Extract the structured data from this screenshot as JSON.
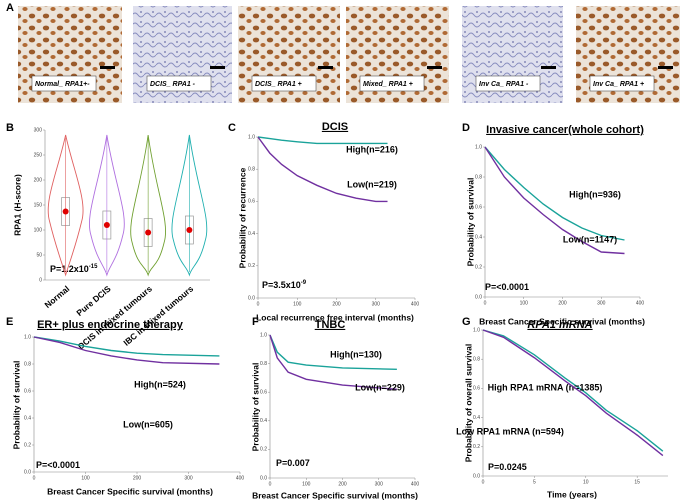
{
  "panel_a": {
    "panel": "A",
    "images": [
      {
        "caption": "Normal_ RPA1+-"
      },
      {
        "caption": "DCIS_ RPA1 -"
      },
      {
        "caption": "DCIS_ RPA1 +"
      },
      {
        "caption": "Mixed_ RPA1 +"
      },
      {
        "caption": "Inv Ca_ RPA1 -"
      },
      {
        "caption": "Inv Ca_ RPA1 +"
      }
    ]
  },
  "chart_data": [
    {
      "type": "violin",
      "panel": "B",
      "y_label": "RPA1 (H-score)",
      "p_value": "P=1.2x10",
      "p_exponent": "-15",
      "categories": [
        "Normal",
        "Pure DCIS",
        "DCIS in mixed tumours",
        "IBC in mixed tumours"
      ],
      "values": [
        137,
        110,
        95,
        100
      ],
      "colors": [
        "#e06060",
        "#b070e0",
        "#70a030",
        "#20b0b0"
      ],
      "ylim": [
        0,
        300
      ],
      "yticks": [
        0,
        50,
        100,
        150,
        200,
        250,
        300
      ]
    },
    {
      "type": "line",
      "panel": "C",
      "title": "DCIS",
      "y_label": "Probability of recurrence",
      "x_label": "Local recurrence free interval (months)",
      "p_value": "P=3.5x10",
      "p_exponent": "-9",
      "x": [
        0,
        30,
        60,
        100,
        150,
        200,
        250,
        300,
        330
      ],
      "series": [
        {
          "name": "High(n=216)",
          "color": "#1aa39a",
          "values": [
            1,
            0.99,
            0.98,
            0.97,
            0.96,
            0.96,
            0.96,
            0.96,
            0.96
          ]
        },
        {
          "name": "Low(n=219)",
          "color": "#7030a0",
          "values": [
            1,
            0.9,
            0.83,
            0.76,
            0.7,
            0.65,
            0.62,
            0.6,
            0.6
          ]
        }
      ],
      "xlim": [
        0,
        400
      ],
      "xticks": [
        0,
        100,
        200,
        300,
        400
      ],
      "ylim": [
        0,
        1
      ],
      "yticks": [
        {
          "value": 0,
          "label": "0.0"
        },
        {
          "value": 0.2,
          "label": "0.2"
        },
        {
          "value": 0.4,
          "label": "0.4"
        },
        {
          "value": 0.6,
          "label": "0.6"
        },
        {
          "value": 0.8,
          "label": "0.8"
        },
        {
          "value": 1,
          "label": "1.0"
        }
      ]
    },
    {
      "type": "line",
      "panel": "D",
      "title": "Invasive cancer(whole cohort)",
      "y_label": "Probability of survival",
      "x_label": "Breast Cancer Specific survival (months)",
      "p_value": "P=<0.0001",
      "x": [
        0,
        50,
        100,
        150,
        200,
        250,
        300,
        360
      ],
      "series": [
        {
          "name": "High(n=936)",
          "color": "#1aa39a",
          "values": [
            1,
            0.85,
            0.73,
            0.62,
            0.53,
            0.46,
            0.41,
            0.38
          ]
        },
        {
          "name": "Low(n=1147)",
          "color": "#7030a0",
          "values": [
            1,
            0.8,
            0.66,
            0.55,
            0.45,
            0.37,
            0.3,
            0.29
          ]
        }
      ],
      "xlim": [
        0,
        400
      ],
      "xticks": [
        0,
        100,
        200,
        300,
        400
      ],
      "ylim": [
        0,
        1
      ],
      "yticks": [
        {
          "value": 0,
          "label": "0.0"
        },
        {
          "value": 0.2,
          "label": "0.2"
        },
        {
          "value": 0.4,
          "label": "0.4"
        },
        {
          "value": 0.6,
          "label": "0.6"
        },
        {
          "value": 0.8,
          "label": "0.8"
        },
        {
          "value": 1,
          "label": "1.0"
        }
      ]
    },
    {
      "type": "line",
      "panel": "E",
      "title": "ER+ plus endocrine therapy",
      "y_label": "Probability of survival",
      "x_label": "Breast Cancer Specific survival (months)",
      "p_value": "P=<0.0001",
      "x": [
        0,
        50,
        100,
        150,
        200,
        250,
        360
      ],
      "series": [
        {
          "name": "High(n=524)",
          "color": "#1aa39a",
          "values": [
            1,
            0.97,
            0.93,
            0.9,
            0.88,
            0.87,
            0.86
          ]
        },
        {
          "name": "Low(n=605)",
          "color": "#7030a0",
          "values": [
            1,
            0.96,
            0.9,
            0.86,
            0.83,
            0.81,
            0.8
          ]
        }
      ],
      "xlim": [
        0,
        400
      ],
      "xticks": [
        0,
        100,
        200,
        300,
        400
      ],
      "ylim": [
        0,
        1
      ],
      "yticks": [
        {
          "value": 0,
          "label": "0.0"
        },
        {
          "value": 0.2,
          "label": "0.2"
        },
        {
          "value": 0.4,
          "label": "0.4"
        },
        {
          "value": 0.6,
          "label": "0.6"
        },
        {
          "value": 0.8,
          "label": "0.8"
        },
        {
          "value": 1,
          "label": "1.0"
        }
      ]
    },
    {
      "type": "line",
      "panel": "F",
      "title": "TNBC",
      "y_label": "Probability of survival",
      "x_label": "Breast Cancer Specific survival (months)",
      "p_value": "P=0.007",
      "x": [
        0,
        20,
        50,
        100,
        200,
        350
      ],
      "series": [
        {
          "name": "High(n=130)",
          "color": "#1aa39a",
          "values": [
            1,
            0.88,
            0.81,
            0.79,
            0.77,
            0.76
          ]
        },
        {
          "name": "Low(n=229)",
          "color": "#7030a0",
          "values": [
            1,
            0.84,
            0.74,
            0.69,
            0.65,
            0.62
          ]
        }
      ],
      "xlim": [
        0,
        400
      ],
      "xticks": [
        0,
        100,
        200,
        300,
        400
      ],
      "ylim": [
        0,
        1
      ],
      "yticks": [
        {
          "value": 0,
          "label": "0.0"
        },
        {
          "value": 0.2,
          "label": "0.2"
        },
        {
          "value": 0.4,
          "label": "0.4"
        },
        {
          "value": 0.6,
          "label": "0.6"
        },
        {
          "value": 0.8,
          "label": "0.8"
        },
        {
          "value": 1,
          "label": "1.0"
        }
      ]
    },
    {
      "type": "line",
      "panel": "G",
      "title": "RPA1 mRNA",
      "y_label": "Probability of overall survival",
      "x_label": "Time (years)",
      "p_value": "P=0.0245",
      "x": [
        0,
        2,
        5,
        8,
        10,
        12,
        15,
        17.5
      ],
      "series": [
        {
          "name": "High RPA1 mRNA (n=1385)",
          "color": "#1aa39a",
          "values": [
            1,
            0.96,
            0.83,
            0.67,
            0.57,
            0.45,
            0.31,
            0.17
          ]
        },
        {
          "name": "Low RPA1 mRNA (n=594)",
          "color": "#7030a0",
          "values": [
            1,
            0.95,
            0.81,
            0.65,
            0.55,
            0.43,
            0.28,
            0.14
          ]
        }
      ],
      "xlim": [
        0,
        18
      ],
      "xticks": [
        0,
        5,
        10,
        15
      ],
      "ylim": [
        0,
        1
      ],
      "yticks": [
        {
          "value": 0,
          "label": "0.0"
        },
        {
          "value": 0.2,
          "label": "0.2"
        },
        {
          "value": 0.4,
          "label": "0.4"
        },
        {
          "value": 0.6,
          "label": "0.6"
        },
        {
          "value": 0.8,
          "label": "0.8"
        },
        {
          "value": 1,
          "label": "1.0"
        }
      ]
    }
  ]
}
